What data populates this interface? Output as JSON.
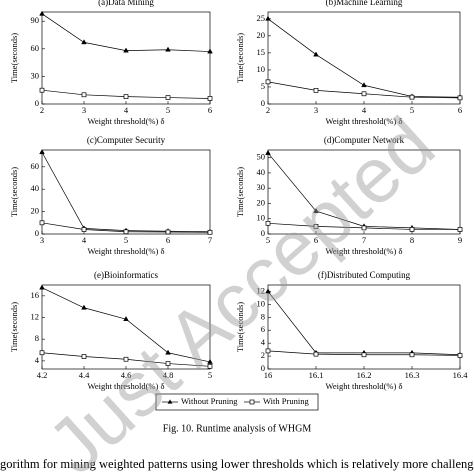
{
  "chart_data": [
    {
      "type": "line",
      "title": "(a)Data Mining",
      "x_label": "Weight threshold(%) δ",
      "y_label": "Time(seconds)",
      "x": [
        2,
        3,
        4,
        5,
        6
      ],
      "xlim": [
        2,
        6
      ],
      "xticks": [
        2,
        3,
        4,
        5,
        6
      ],
      "ylim": [
        0,
        100
      ],
      "yticks": [
        0,
        30,
        60,
        90
      ],
      "series": [
        {
          "name": "Without Pruning",
          "color": "#000000",
          "marker": "triangle",
          "values": [
            98,
            67,
            58,
            59,
            57
          ]
        },
        {
          "name": "With Pruning",
          "color": "#000000",
          "marker": "square",
          "values": [
            15,
            10,
            8,
            7,
            6
          ]
        }
      ]
    },
    {
      "type": "line",
      "title": "(b)Machine Learning",
      "x_label": "Weight threshold(%) δ",
      "y_label": "Time(seconds)",
      "x": [
        2,
        3,
        4,
        5,
        6
      ],
      "xlim": [
        2,
        6
      ],
      "xticks": [
        2,
        3,
        4,
        5,
        6
      ],
      "ylim": [
        0,
        27
      ],
      "yticks": [
        0,
        5,
        10,
        15,
        20,
        25
      ],
      "series": [
        {
          "name": "Without Pruning",
          "color": "#000000",
          "marker": "triangle",
          "values": [
            25,
            14.5,
            5.5,
            2.2,
            2
          ]
        },
        {
          "name": "With Pruning",
          "color": "#000000",
          "marker": "square",
          "values": [
            6.5,
            4,
            3,
            2,
            1.8
          ]
        }
      ]
    },
    {
      "type": "line",
      "title": "(c)Computer Security",
      "x_label": "Weight threshold(%) δ",
      "y_label": "Time(seconds)",
      "x": [
        3,
        4,
        5,
        6,
        7
      ],
      "xlim": [
        3,
        7
      ],
      "xticks": [
        3,
        4,
        5,
        6,
        7
      ],
      "ylim": [
        0,
        75
      ],
      "yticks": [
        0,
        20,
        40,
        60
      ],
      "series": [
        {
          "name": "Without Pruning",
          "color": "#000000",
          "marker": "triangle",
          "values": [
            73,
            5,
            3,
            2.5,
            2
          ]
        },
        {
          "name": "With Pruning",
          "color": "#000000",
          "marker": "square",
          "values": [
            10,
            4,
            2,
            1.8,
            1.5
          ]
        }
      ]
    },
    {
      "type": "line",
      "title": "(d)Computer Network",
      "x_label": "Weight threshold(%) δ",
      "y_label": "Time(seconds)",
      "x": [
        5,
        6,
        7,
        8,
        9
      ],
      "xlim": [
        5,
        9
      ],
      "xticks": [
        5,
        6,
        7,
        8,
        9
      ],
      "ylim": [
        0,
        55
      ],
      "yticks": [
        0,
        10,
        20,
        30,
        40,
        50
      ],
      "series": [
        {
          "name": "Without Pruning",
          "color": "#000000",
          "marker": "triangle",
          "values": [
            53,
            15,
            5,
            4,
            3
          ]
        },
        {
          "name": "With Pruning",
          "color": "#000000",
          "marker": "square",
          "values": [
            7,
            5,
            4,
            3,
            3
          ]
        }
      ]
    },
    {
      "type": "line",
      "title": "(e)Bioinformatics",
      "x_label": "Weight threshold(%) δ",
      "y_label": "Time(seconds)",
      "x": [
        4.2,
        4.4,
        4.6,
        4.8,
        5
      ],
      "xlim": [
        4.2,
        5
      ],
      "xticks": [
        4.2,
        4.4,
        4.6,
        4.8,
        5
      ],
      "ylim": [
        2.5,
        18
      ],
      "yticks": [
        4,
        8,
        12,
        16
      ],
      "series": [
        {
          "name": "Without Pruning",
          "color": "#000000",
          "marker": "triangle",
          "values": [
            17.5,
            13.8,
            11.7,
            5.5,
            3.8
          ]
        },
        {
          "name": "With Pruning",
          "color": "#000000",
          "marker": "square",
          "values": [
            5.5,
            4.8,
            4.3,
            3.5,
            3
          ]
        }
      ]
    },
    {
      "type": "line",
      "title": "(f)Distributed Computing",
      "x_label": "Weight threshold(%) δ",
      "y_label": "Time(seconds)",
      "x": [
        16,
        16.1,
        16.2,
        16.3,
        16.4
      ],
      "xlim": [
        16,
        16.4
      ],
      "xticks": [
        16,
        16.1,
        16.2,
        16.3,
        16.4
      ],
      "ylim": [
        0,
        13
      ],
      "yticks": [
        0,
        2,
        4,
        6,
        8,
        10,
        12
      ],
      "series": [
        {
          "name": "Without Pruning",
          "color": "#000000",
          "marker": "triangle",
          "values": [
            12,
            2.5,
            2.5,
            2.5,
            2.2
          ]
        },
        {
          "name": "With Pruning",
          "color": "#000000",
          "marker": "square",
          "values": [
            2.8,
            2.3,
            2.2,
            2.2,
            2.1
          ]
        }
      ]
    }
  ],
  "caption": "Fig. 10.  Runtime analysis of WHGM",
  "body_text": "gorithm for mining weighted patterns using lower thresholds which is relatively more challenging than high",
  "watermark": "Just Accepted"
}
